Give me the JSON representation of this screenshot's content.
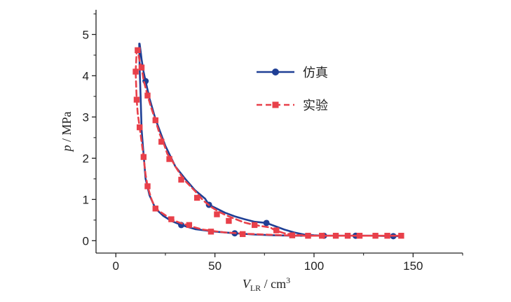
{
  "chart_data": {
    "type": "line",
    "title": "",
    "xlabel_var": "V",
    "xlabel_sub": "LR",
    "xlabel_unit": " / cm",
    "xlabel_sup": "3",
    "ylabel_var": "p",
    "ylabel_unit": " / MPa",
    "xlim": [
      -10,
      175
    ],
    "ylim": [
      -0.3,
      5.6
    ],
    "xticks": [
      0,
      50,
      100,
      150
    ],
    "yticks": [
      0,
      1,
      2,
      3,
      4,
      5
    ],
    "series": [
      {
        "name": "仿真",
        "color": "#1f3f95",
        "style": "solid",
        "marker": "circle",
        "curve": [
          [
            12,
            4.78
          ],
          [
            12.5,
            4.6
          ],
          [
            13,
            4.4
          ],
          [
            14,
            4.1
          ],
          [
            15,
            3.87
          ],
          [
            17,
            3.45
          ],
          [
            20,
            2.95
          ],
          [
            25,
            2.3
          ],
          [
            30,
            1.8
          ],
          [
            35,
            1.5
          ],
          [
            40,
            1.22
          ],
          [
            45,
            1.02
          ],
          [
            47,
            0.87
          ],
          [
            50,
            0.8
          ],
          [
            55,
            0.68
          ],
          [
            60,
            0.59
          ],
          [
            65,
            0.52
          ],
          [
            70,
            0.46
          ],
          [
            76,
            0.43
          ],
          [
            80,
            0.36
          ],
          [
            85,
            0.27
          ],
          [
            90,
            0.2
          ],
          [
            95,
            0.15
          ],
          [
            100,
            0.13
          ],
          [
            105,
            0.12
          ],
          [
            110,
            0.12
          ],
          [
            120,
            0.12
          ],
          [
            130,
            0.12
          ],
          [
            140,
            0.11
          ],
          [
            144,
            0.11
          ],
          [
            130,
            0.12
          ],
          [
            120,
            0.12
          ],
          [
            110,
            0.12
          ],
          [
            100,
            0.12
          ],
          [
            90,
            0.12
          ],
          [
            80,
            0.13
          ],
          [
            70,
            0.15
          ],
          [
            60,
            0.18
          ],
          [
            50,
            0.22
          ],
          [
            40,
            0.28
          ],
          [
            33,
            0.38
          ],
          [
            28,
            0.48
          ],
          [
            24,
            0.6
          ],
          [
            20,
            0.78
          ],
          [
            17,
            1.1
          ],
          [
            15,
            1.5
          ],
          [
            14,
            2.1
          ],
          [
            13,
            2.7
          ],
          [
            12.5,
            3.5
          ],
          [
            12,
            4.2
          ],
          [
            11.8,
            4.78
          ]
        ],
        "markers": [
          [
            15,
            3.87
          ],
          [
            33,
            0.38
          ],
          [
            47,
            0.87
          ],
          [
            60,
            0.18
          ],
          [
            76,
            0.43
          ],
          [
            105,
            0.12
          ],
          [
            121,
            0.12
          ],
          [
            140,
            0.11
          ]
        ]
      },
      {
        "name": "实验",
        "color": "#e8404a",
        "style": "dashed",
        "marker": "square",
        "curve": [
          [
            10,
            4.1
          ],
          [
            10.5,
            4.6
          ],
          [
            11,
            4.62
          ],
          [
            12,
            4.35
          ],
          [
            13,
            4.2
          ],
          [
            14,
            3.9
          ],
          [
            16,
            3.52
          ],
          [
            18,
            3.2
          ],
          [
            20,
            2.92
          ],
          [
            22,
            2.6
          ],
          [
            24,
            2.38
          ],
          [
            26,
            2.1
          ],
          [
            28,
            1.98
          ],
          [
            30,
            1.8
          ],
          [
            34,
            1.5
          ],
          [
            36,
            1.4
          ],
          [
            40,
            1.2
          ],
          [
            44,
            0.98
          ],
          [
            48,
            0.82
          ],
          [
            52,
            0.7
          ],
          [
            55,
            0.63
          ],
          [
            60,
            0.53
          ],
          [
            65,
            0.44
          ],
          [
            70,
            0.38
          ],
          [
            74,
            0.35
          ],
          [
            78,
            0.32
          ],
          [
            80,
            0.26
          ],
          [
            85,
            0.18
          ],
          [
            90,
            0.14
          ],
          [
            95,
            0.13
          ],
          [
            100,
            0.12
          ],
          [
            110,
            0.12
          ],
          [
            120,
            0.12
          ],
          [
            130,
            0.12
          ],
          [
            140,
            0.12
          ],
          [
            145,
            0.12
          ],
          [
            135,
            0.12
          ],
          [
            125,
            0.12
          ],
          [
            115,
            0.12
          ],
          [
            105,
            0.12
          ],
          [
            95,
            0.12
          ],
          [
            85,
            0.13
          ],
          [
            75,
            0.15
          ],
          [
            65,
            0.17
          ],
          [
            55,
            0.2
          ],
          [
            48,
            0.24
          ],
          [
            44,
            0.27
          ],
          [
            40,
            0.32
          ],
          [
            36,
            0.38
          ],
          [
            32,
            0.44
          ],
          [
            28,
            0.52
          ],
          [
            24,
            0.65
          ],
          [
            20,
            0.78
          ],
          [
            18,
            1.0
          ],
          [
            16,
            1.32
          ],
          [
            15,
            1.6
          ],
          [
            14,
            2.03
          ],
          [
            13,
            2.4
          ],
          [
            12,
            2.75
          ],
          [
            11,
            3.1
          ],
          [
            10.5,
            3.42
          ],
          [
            10,
            4.1
          ]
        ],
        "markers": [
          [
            10,
            4.1
          ],
          [
            10.5,
            3.42
          ],
          [
            11,
            4.62
          ],
          [
            12,
            2.75
          ],
          [
            13,
            4.2
          ],
          [
            14,
            2.03
          ],
          [
            16,
            3.52
          ],
          [
            16,
            1.32
          ],
          [
            20,
            2.92
          ],
          [
            20,
            0.78
          ],
          [
            23,
            2.4
          ],
          [
            27,
            1.98
          ],
          [
            28,
            0.52
          ],
          [
            33,
            1.48
          ],
          [
            37,
            0.38
          ],
          [
            41,
            1.04
          ],
          [
            48,
            0.22
          ],
          [
            51,
            0.64
          ],
          [
            57,
            0.48
          ],
          [
            64,
            0.16
          ],
          [
            70,
            0.38
          ],
          [
            81,
            0.25
          ],
          [
            89,
            0.13
          ],
          [
            97,
            0.12
          ],
          [
            104,
            0.12
          ],
          [
            111,
            0.12
          ],
          [
            117,
            0.12
          ],
          [
            123,
            0.12
          ],
          [
            131,
            0.12
          ],
          [
            137,
            0.12
          ],
          [
            144,
            0.12
          ]
        ]
      }
    ],
    "legend_position": "top-right"
  }
}
